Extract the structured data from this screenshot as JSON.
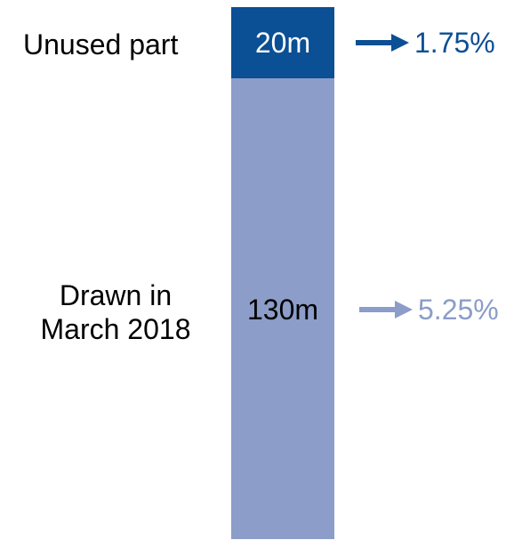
{
  "chart_data": {
    "type": "bar",
    "orientation": "vertical stacked",
    "categories": [
      "Unused part",
      "Drawn in March 2018"
    ],
    "series": [
      {
        "category_lines": [
          "Unused part"
        ],
        "value": 20,
        "value_label": "20m",
        "rate_label": "1.75%",
        "color": "#0B4F94",
        "value_text_color": "#ffffff",
        "rate_color": "#0B4F94"
      },
      {
        "category_lines": [
          "Drawn in",
          "March 2018"
        ],
        "value": 130,
        "value_label": "130m",
        "rate_label": "5.25%",
        "color": "#8B9DC8",
        "value_text_color": "#000000",
        "rate_color": "#8B9DC8"
      }
    ],
    "total": 150,
    "stack_order": "top-to-bottom"
  }
}
